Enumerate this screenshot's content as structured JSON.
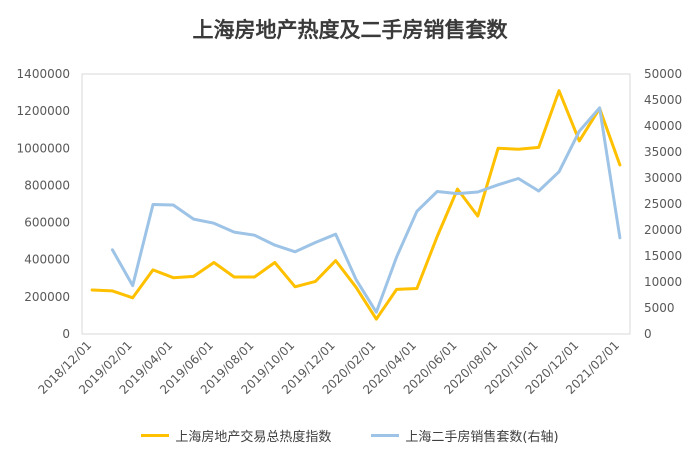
{
  "chart_data": {
    "type": "line",
    "title": "上海房地产热度及二手房销售套数",
    "xlabel": "",
    "ylabel": "",
    "x": [
      "2018/12/01",
      "2019/01/01",
      "2019/02/01",
      "2019/03/01",
      "2019/04/01",
      "2019/05/01",
      "2019/06/01",
      "2019/07/01",
      "2019/08/01",
      "2019/09/01",
      "2019/10/01",
      "2019/11/01",
      "2019/12/01",
      "2020/01/01",
      "2020/02/01",
      "2020/03/01",
      "2020/04/01",
      "2020/05/01",
      "2020/06/01",
      "2020/07/01",
      "2020/08/01",
      "2020/09/01",
      "2020/10/01",
      "2020/11/01",
      "2020/12/01",
      "2021/01/01",
      "2021/02/01"
    ],
    "x_tick_labels": [
      "2018/12/01",
      "2019/02/01",
      "2019/04/01",
      "2019/06/01",
      "2019/08/01",
      "2019/10/01",
      "2019/12/01",
      "2020/02/01",
      "2020/04/01",
      "2020/06/01",
      "2020/08/01",
      "2020/10/01",
      "2020/12/01",
      "2021/02/01"
    ],
    "ylim_left": [
      0,
      1400000
    ],
    "yticks_left": [
      0,
      200000,
      400000,
      600000,
      800000,
      1000000,
      1200000,
      1400000
    ],
    "ylim_right": [
      0,
      50000
    ],
    "yticks_right": [
      0,
      5000,
      10000,
      15000,
      20000,
      25000,
      30000,
      35000,
      40000,
      45000,
      50000
    ],
    "grid": false,
    "legend_position": "bottom",
    "series": [
      {
        "name": "上海房地产交易总热度指数",
        "axis": "left",
        "color": "#FFC000",
        "values": [
          237000,
          232000,
          195000,
          345000,
          303000,
          310000,
          385000,
          307000,
          307000,
          385000,
          254000,
          283000,
          395000,
          252000,
          80000,
          240000,
          245000,
          525000,
          780000,
          635000,
          1000000,
          995000,
          1005000,
          1310000,
          1040000,
          1215000,
          910000
        ]
      },
      {
        "name": "上海二手房销售套数(右轴)",
        "axis": "right",
        "color": "#9DC3E6",
        "values": [
          null,
          16200,
          9300,
          24900,
          24800,
          22100,
          21300,
          19600,
          19000,
          17100,
          15800,
          17600,
          19200,
          10500,
          4200,
          14800,
          23600,
          27400,
          27000,
          27300,
          28700,
          29900,
          27500,
          31200,
          39000,
          43500,
          18500
        ]
      }
    ]
  }
}
